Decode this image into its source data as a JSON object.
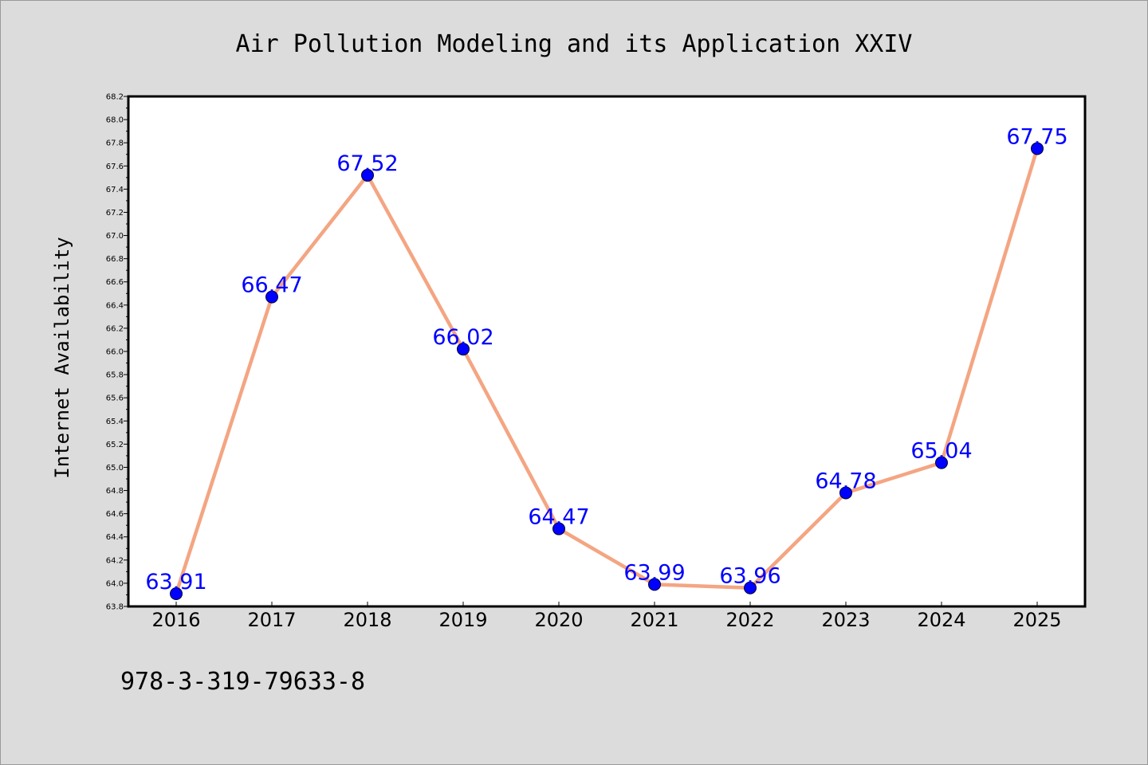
{
  "chart_data": {
    "type": "line",
    "title": "Air Pollution Modeling and its Application XXIV",
    "xlabel": "",
    "ylabel": "Internet Availability",
    "categories": [
      "2016",
      "2017",
      "2018",
      "2019",
      "2020",
      "2021",
      "2022",
      "2023",
      "2024",
      "2025"
    ],
    "series": [
      {
        "values": [
          63.91,
          66.47,
          67.52,
          66.02,
          64.47,
          63.99,
          63.96,
          64.78,
          65.04,
          67.75
        ],
        "labels": [
          "63.91",
          "66.47",
          "67.52",
          "66.02",
          "64.47",
          "63.99",
          "63.96",
          "64.78",
          "65.04",
          "67.75"
        ]
      }
    ],
    "ylim": [
      63.8,
      68.2
    ],
    "yticks": [
      "63.8",
      "64.0",
      "64.2",
      "64.4",
      "64.6",
      "64.8",
      "65.0",
      "65.2",
      "65.4",
      "65.6",
      "65.8",
      "66.0",
      "66.2",
      "66.4",
      "66.6",
      "66.8",
      "67.0",
      "67.2",
      "67.4",
      "67.6",
      "67.8",
      "68.0",
      "68.2"
    ],
    "grid": false,
    "legend": "none",
    "colors": {
      "line": "#f4a582",
      "marker": "#0000ff",
      "label": "#0000ff",
      "background": "#dcdcdc",
      "plot_area": "#ffffff"
    }
  },
  "footer": {
    "isbn": "978-3-319-79633-8"
  }
}
